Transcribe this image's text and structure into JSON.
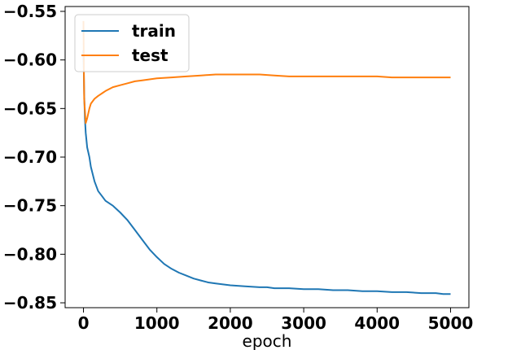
{
  "chart_data": {
    "type": "line",
    "title": "",
    "xlabel": "epoch",
    "ylabel": "",
    "xlim": [
      -250,
      5250
    ],
    "ylim": [
      -0.855,
      -0.545
    ],
    "xticks": [
      0,
      1000,
      2000,
      3000,
      4000,
      5000
    ],
    "xtick_labels": [
      "0",
      "1000",
      "2000",
      "3000",
      "4000",
      "5000"
    ],
    "yticks": [
      -0.85,
      -0.8,
      -0.75,
      -0.7,
      -0.65,
      -0.6,
      -0.55
    ],
    "ytick_labels": [
      "−0.85",
      "−0.80",
      "−0.75",
      "−0.70",
      "−0.65",
      "−0.60",
      "−0.55"
    ],
    "grid": false,
    "legend": "top-left",
    "series": [
      {
        "name": "train",
        "color": "#1f77b4",
        "x": [
          0,
          10,
          20,
          30,
          50,
          80,
          100,
          150,
          200,
          250,
          300,
          400,
          500,
          600,
          700,
          800,
          900,
          1000,
          1100,
          1200,
          1300,
          1400,
          1500,
          1600,
          1700,
          1800,
          1900,
          2000,
          2200,
          2400,
          2500,
          2600,
          2800,
          3000,
          3200,
          3400,
          3600,
          3800,
          4000,
          4200,
          4400,
          4600,
          4800,
          4900,
          5000
        ],
        "y": [
          -0.59,
          -0.635,
          -0.66,
          -0.675,
          -0.69,
          -0.7,
          -0.71,
          -0.725,
          -0.735,
          -0.74,
          -0.745,
          -0.75,
          -0.757,
          -0.765,
          -0.775,
          -0.785,
          -0.795,
          -0.803,
          -0.81,
          -0.815,
          -0.819,
          -0.822,
          -0.825,
          -0.827,
          -0.829,
          -0.83,
          -0.831,
          -0.832,
          -0.833,
          -0.834,
          -0.834,
          -0.835,
          -0.835,
          -0.836,
          -0.836,
          -0.837,
          -0.837,
          -0.838,
          -0.838,
          -0.839,
          -0.839,
          -0.84,
          -0.84,
          -0.841,
          -0.841
        ]
      },
      {
        "name": "test",
        "color": "#ff7f0e",
        "x": [
          0,
          10,
          30,
          50,
          80,
          100,
          150,
          200,
          300,
          400,
          500,
          600,
          700,
          800,
          900,
          1000,
          1200,
          1400,
          1600,
          1800,
          2000,
          2200,
          2400,
          2600,
          2800,
          3000,
          3200,
          3400,
          3600,
          3800,
          4000,
          4200,
          4400,
          4600,
          4800,
          5000
        ],
        "y": [
          -0.56,
          -0.64,
          -0.665,
          -0.66,
          -0.65,
          -0.645,
          -0.64,
          -0.637,
          -0.632,
          -0.628,
          -0.626,
          -0.624,
          -0.622,
          -0.621,
          -0.62,
          -0.619,
          -0.618,
          -0.617,
          -0.616,
          -0.615,
          -0.615,
          -0.615,
          -0.615,
          -0.616,
          -0.617,
          -0.617,
          -0.617,
          -0.617,
          -0.617,
          -0.617,
          -0.617,
          -0.618,
          -0.618,
          -0.618,
          -0.618,
          -0.618
        ]
      }
    ]
  }
}
